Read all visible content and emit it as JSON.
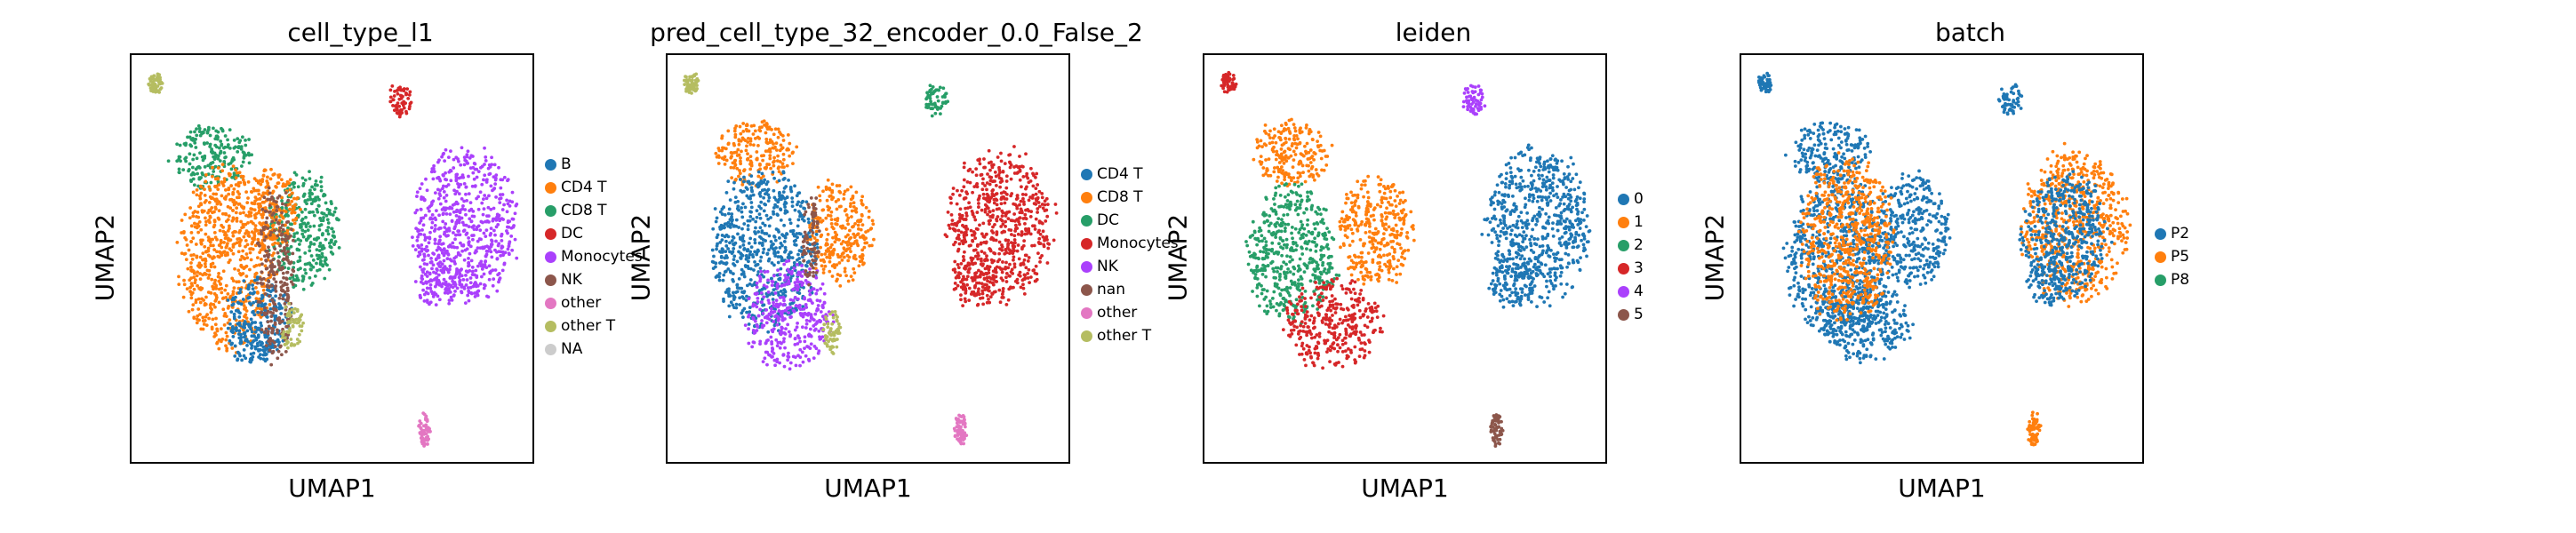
{
  "chart_data": [
    {
      "type": "scatter",
      "title": "cell_type_l1",
      "xlabel": "UMAP1",
      "ylabel": "UMAP2",
      "legend_placement": "right",
      "grid": false,
      "legend": [
        {
          "label": "B",
          "color": "#1f77b4"
        },
        {
          "label": "CD4 T",
          "color": "#ff7f0e"
        },
        {
          "label": "CD8 T",
          "color": "#279e68"
        },
        {
          "label": "DC",
          "color": "#d62728"
        },
        {
          "label": "Monocytes",
          "color": "#aa40fc"
        },
        {
          "label": "NK",
          "color": "#8c564b"
        },
        {
          "label": "other",
          "color": "#e377c2"
        },
        {
          "label": "other T",
          "color": "#b5bd61"
        },
        {
          "label": "NA",
          "color": "#cccccc"
        }
      ],
      "clusters": [
        {
          "color": "#b5bd61",
          "cx": 0.06,
          "cy": 0.07,
          "rx": 0.02,
          "ry": 0.025
        },
        {
          "color": "#279e68",
          "cx": 0.2,
          "cy": 0.25,
          "rx": 0.1,
          "ry": 0.08
        },
        {
          "color": "#279e68",
          "cx": 0.43,
          "cy": 0.43,
          "rx": 0.09,
          "ry": 0.14
        },
        {
          "color": "#ff7f0e",
          "cx": 0.24,
          "cy": 0.5,
          "rx": 0.12,
          "ry": 0.22
        },
        {
          "color": "#ff7f0e",
          "cx": 0.35,
          "cy": 0.38,
          "rx": 0.07,
          "ry": 0.1
        },
        {
          "color": "#1f77b4",
          "cx": 0.32,
          "cy": 0.64,
          "rx": 0.08,
          "ry": 0.1
        },
        {
          "color": "#1f77b4",
          "cx": 0.3,
          "cy": 0.71,
          "rx": 0.07,
          "ry": 0.05
        },
        {
          "color": "#8c564b",
          "cx": 0.36,
          "cy": 0.53,
          "rx": 0.045,
          "ry": 0.22
        },
        {
          "color": "#b5bd61",
          "cx": 0.4,
          "cy": 0.67,
          "rx": 0.03,
          "ry": 0.06
        },
        {
          "color": "#d62728",
          "cx": 0.67,
          "cy": 0.11,
          "rx": 0.03,
          "ry": 0.04
        },
        {
          "color": "#aa40fc",
          "cx": 0.83,
          "cy": 0.42,
          "rx": 0.13,
          "ry": 0.19
        },
        {
          "color": "#aa40fc",
          "cx": 0.77,
          "cy": 0.56,
          "rx": 0.06,
          "ry": 0.06
        },
        {
          "color": "#e377c2",
          "cx": 0.73,
          "cy": 0.92,
          "rx": 0.016,
          "ry": 0.04
        }
      ]
    },
    {
      "type": "scatter",
      "title": "pred_cell_type_32_encoder_0.0_False_2",
      "xlabel": "UMAP1",
      "ylabel": "UMAP2",
      "legend_placement": "right",
      "grid": false,
      "legend": [
        {
          "label": "CD4 T",
          "color": "#1f77b4"
        },
        {
          "label": "CD8 T",
          "color": "#ff7f0e"
        },
        {
          "label": "DC",
          "color": "#279e68"
        },
        {
          "label": "Monocytes",
          "color": "#d62728"
        },
        {
          "label": "NK",
          "color": "#aa40fc"
        },
        {
          "label": "nan",
          "color": "#8c564b"
        },
        {
          "label": "other",
          "color": "#e377c2"
        },
        {
          "label": "other T",
          "color": "#b5bd61"
        }
      ],
      "clusters": [
        {
          "color": "#b5bd61",
          "cx": 0.06,
          "cy": 0.07,
          "rx": 0.02,
          "ry": 0.025
        },
        {
          "color": "#ff7f0e",
          "cx": 0.22,
          "cy": 0.24,
          "rx": 0.1,
          "ry": 0.08
        },
        {
          "color": "#ff7f0e",
          "cx": 0.43,
          "cy": 0.43,
          "rx": 0.08,
          "ry": 0.13
        },
        {
          "color": "#1f77b4",
          "cx": 0.24,
          "cy": 0.48,
          "rx": 0.13,
          "ry": 0.2
        },
        {
          "color": "#aa40fc",
          "cx": 0.3,
          "cy": 0.64,
          "rx": 0.11,
          "ry": 0.13
        },
        {
          "color": "#b5bd61",
          "cx": 0.41,
          "cy": 0.68,
          "rx": 0.025,
          "ry": 0.05
        },
        {
          "color": "#8c564b",
          "cx": 0.36,
          "cy": 0.45,
          "rx": 0.025,
          "ry": 0.12
        },
        {
          "color": "#279e68",
          "cx": 0.67,
          "cy": 0.11,
          "rx": 0.03,
          "ry": 0.04
        },
        {
          "color": "#d62728",
          "cx": 0.83,
          "cy": 0.42,
          "rx": 0.13,
          "ry": 0.19
        },
        {
          "color": "#d62728",
          "cx": 0.77,
          "cy": 0.56,
          "rx": 0.06,
          "ry": 0.06
        },
        {
          "color": "#e377c2",
          "cx": 0.73,
          "cy": 0.92,
          "rx": 0.016,
          "ry": 0.04
        }
      ]
    },
    {
      "type": "scatter",
      "title": "leiden",
      "xlabel": "UMAP1",
      "ylabel": "UMAP2",
      "legend_placement": "right",
      "grid": false,
      "legend": [
        {
          "label": "0",
          "color": "#1f77b4"
        },
        {
          "label": "1",
          "color": "#ff7f0e"
        },
        {
          "label": "2",
          "color": "#279e68"
        },
        {
          "label": "3",
          "color": "#d62728"
        },
        {
          "label": "4",
          "color": "#aa40fc"
        },
        {
          "label": "5",
          "color": "#8c564b"
        }
      ],
      "clusters": [
        {
          "color": "#d62728",
          "cx": 0.06,
          "cy": 0.07,
          "rx": 0.02,
          "ry": 0.025
        },
        {
          "color": "#ff7f0e",
          "cx": 0.22,
          "cy": 0.24,
          "rx": 0.1,
          "ry": 0.08
        },
        {
          "color": "#ff7f0e",
          "cx": 0.43,
          "cy": 0.43,
          "rx": 0.09,
          "ry": 0.14
        },
        {
          "color": "#279e68",
          "cx": 0.22,
          "cy": 0.49,
          "rx": 0.11,
          "ry": 0.17
        },
        {
          "color": "#d62728",
          "cx": 0.32,
          "cy": 0.66,
          "rx": 0.12,
          "ry": 0.11
        },
        {
          "color": "#aa40fc",
          "cx": 0.67,
          "cy": 0.11,
          "rx": 0.03,
          "ry": 0.04
        },
        {
          "color": "#1f77b4",
          "cx": 0.83,
          "cy": 0.42,
          "rx": 0.13,
          "ry": 0.19
        },
        {
          "color": "#1f77b4",
          "cx": 0.77,
          "cy": 0.56,
          "rx": 0.06,
          "ry": 0.06
        },
        {
          "color": "#8c564b",
          "cx": 0.73,
          "cy": 0.92,
          "rx": 0.016,
          "ry": 0.04
        }
      ]
    },
    {
      "type": "scatter",
      "title": "batch",
      "xlabel": "UMAP1",
      "ylabel": "UMAP2",
      "legend_placement": "right",
      "grid": false,
      "legend": [
        {
          "label": "P2",
          "color": "#1f77b4"
        },
        {
          "label": "P5",
          "color": "#ff7f0e"
        },
        {
          "label": "P8",
          "color": "#279e68"
        }
      ],
      "clusters": [
        {
          "color": "#1f77b4",
          "cx": 0.06,
          "cy": 0.07,
          "rx": 0.02,
          "ry": 0.025
        },
        {
          "color": "#1f77b4",
          "cx": 0.22,
          "cy": 0.24,
          "rx": 0.1,
          "ry": 0.08
        },
        {
          "color": "#1f77b4",
          "cx": 0.43,
          "cy": 0.43,
          "rx": 0.09,
          "ry": 0.14
        },
        {
          "color": "#1f77b4",
          "cx": 0.24,
          "cy": 0.5,
          "rx": 0.13,
          "ry": 0.2
        },
        {
          "color": "#1f77b4",
          "cx": 0.31,
          "cy": 0.66,
          "rx": 0.11,
          "ry": 0.1
        },
        {
          "color": "#ff7f0e",
          "cx": 0.26,
          "cy": 0.45,
          "rx": 0.12,
          "ry": 0.2
        },
        {
          "color": "#1f77b4",
          "cx": 0.67,
          "cy": 0.11,
          "rx": 0.03,
          "ry": 0.04
        },
        {
          "color": "#ff7f0e",
          "cx": 0.83,
          "cy": 0.42,
          "rx": 0.13,
          "ry": 0.19
        },
        {
          "color": "#1f77b4",
          "cx": 0.81,
          "cy": 0.44,
          "rx": 0.11,
          "ry": 0.15
        },
        {
          "color": "#1f77b4",
          "cx": 0.77,
          "cy": 0.56,
          "rx": 0.06,
          "ry": 0.06
        },
        {
          "color": "#ff7f0e",
          "cx": 0.73,
          "cy": 0.92,
          "rx": 0.016,
          "ry": 0.04
        }
      ]
    }
  ]
}
